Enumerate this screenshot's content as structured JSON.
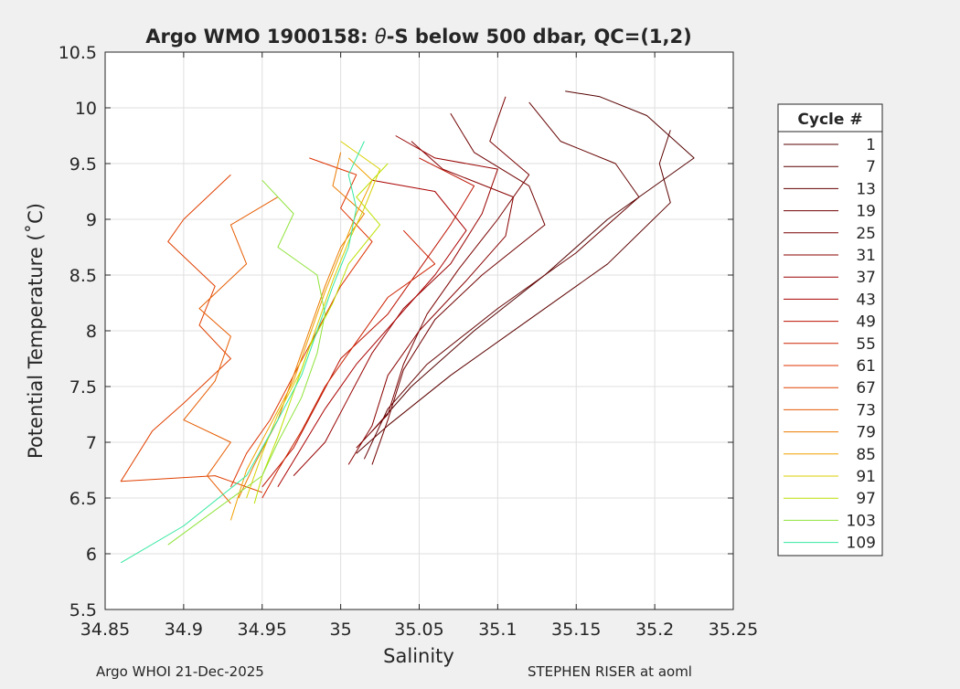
{
  "chart_data": {
    "type": "line",
    "title_prefix": "Argo WMO 1900158: ",
    "title_theta": "θ",
    "title_suffix": "-S below 500 dbar,  QC=(1,2)",
    "xlabel": "Salinity",
    "ylabel": "Potential Temperature (˚C)",
    "xlim": [
      34.85,
      35.25
    ],
    "ylim": [
      5.5,
      10.5
    ],
    "xticks": [
      34.85,
      34.9,
      34.95,
      35,
      35.05,
      35.1,
      35.15,
      35.2,
      35.25
    ],
    "xtick_labels": [
      "34.85",
      "34.9",
      "34.95",
      "35",
      "35.05",
      "35.1",
      "35.15",
      "35.2",
      "35.25"
    ],
    "yticks": [
      5.5,
      6,
      6.5,
      7,
      7.5,
      8,
      8.5,
      9,
      9.5,
      10,
      10.5
    ],
    "ytick_labels": [
      "5.5",
      "6",
      "6.5",
      "7",
      "7.5",
      "8",
      "8.5",
      "9",
      "9.5",
      "10",
      "10.5"
    ],
    "grid": true,
    "legend": {
      "title": "Cycle #",
      "placement": "outside-right",
      "entries": [
        "1",
        "7",
        "13",
        "19",
        "25",
        "31",
        "37",
        "43",
        "49",
        "55",
        "61",
        "67",
        "73",
        "79",
        "85",
        "91",
        "97",
        "103",
        "109"
      ]
    },
    "series": [
      {
        "name": "1",
        "color": "#550000",
        "points": [
          [
            35.143,
            10.15
          ],
          [
            35.165,
            10.1
          ],
          [
            35.195,
            9.93
          ],
          [
            35.225,
            9.55
          ],
          [
            35.17,
            9.0
          ],
          [
            35.13,
            8.5
          ],
          [
            35.085,
            8.0
          ],
          [
            35.045,
            7.5
          ],
          [
            35.02,
            7.1
          ]
        ]
      },
      {
        "name": "7",
        "color": "#5c0000",
        "points": [
          [
            35.21,
            9.8
          ],
          [
            35.203,
            9.5
          ],
          [
            35.21,
            9.15
          ],
          [
            35.17,
            8.6
          ],
          [
            35.12,
            8.1
          ],
          [
            35.07,
            7.6
          ],
          [
            35.03,
            7.15
          ],
          [
            35.01,
            6.9
          ]
        ]
      },
      {
        "name": "13",
        "color": "#650000",
        "points": [
          [
            35.12,
            10.05
          ],
          [
            35.14,
            9.7
          ],
          [
            35.175,
            9.5
          ],
          [
            35.19,
            9.2
          ],
          [
            35.15,
            8.7
          ],
          [
            35.1,
            8.2
          ],
          [
            35.055,
            7.7
          ],
          [
            35.03,
            7.3
          ],
          [
            35.015,
            6.85
          ]
        ]
      },
      {
        "name": "19",
        "color": "#700000",
        "points": [
          [
            35.07,
            9.95
          ],
          [
            35.085,
            9.6
          ],
          [
            35.12,
            9.3
          ],
          [
            35.13,
            8.95
          ],
          [
            35.09,
            8.5
          ],
          [
            35.06,
            8.1
          ],
          [
            35.04,
            7.65
          ],
          [
            35.03,
            7.2
          ],
          [
            35.02,
            6.8
          ]
        ]
      },
      {
        "name": "25",
        "color": "#7a0000",
        "points": [
          [
            35.105,
            10.1
          ],
          [
            35.095,
            9.7
          ],
          [
            35.12,
            9.4
          ],
          [
            35.1,
            9.0
          ],
          [
            35.075,
            8.55
          ],
          [
            35.055,
            8.15
          ],
          [
            35.04,
            7.7
          ],
          [
            35.03,
            7.25
          ],
          [
            35.01,
            6.95
          ]
        ]
      },
      {
        "name": "31",
        "color": "#880000",
        "points": [
          [
            35.045,
            9.7
          ],
          [
            35.065,
            9.45
          ],
          [
            35.11,
            9.2
          ],
          [
            35.105,
            8.85
          ],
          [
            35.08,
            8.45
          ],
          [
            35.05,
            8.0
          ],
          [
            35.03,
            7.6
          ],
          [
            35.02,
            7.15
          ],
          [
            35.005,
            6.8
          ]
        ]
      },
      {
        "name": "37",
        "color": "#980000",
        "points": [
          [
            35.035,
            9.75
          ],
          [
            35.06,
            9.55
          ],
          [
            35.1,
            9.45
          ],
          [
            35.09,
            9.05
          ],
          [
            35.07,
            8.6
          ],
          [
            35.04,
            8.2
          ],
          [
            35.02,
            7.8
          ],
          [
            35.005,
            7.4
          ],
          [
            34.99,
            7.0
          ],
          [
            34.97,
            6.7
          ]
        ]
      },
      {
        "name": "43",
        "color": "#aa0000",
        "points": [
          [
            35.02,
            9.35
          ],
          [
            35.06,
            9.25
          ],
          [
            35.08,
            8.9
          ],
          [
            35.06,
            8.5
          ],
          [
            35.035,
            8.1
          ],
          [
            35.01,
            7.7
          ],
          [
            34.99,
            7.3
          ],
          [
            34.975,
            6.95
          ],
          [
            34.96,
            6.6
          ]
        ]
      },
      {
        "name": "49",
        "color": "#bb1100",
        "points": [
          [
            35.05,
            9.55
          ],
          [
            35.085,
            9.3
          ],
          [
            35.07,
            8.95
          ],
          [
            35.05,
            8.55
          ],
          [
            35.03,
            8.15
          ],
          [
            35.0,
            7.75
          ],
          [
            34.985,
            7.35
          ],
          [
            34.97,
            6.95
          ],
          [
            34.95,
            6.6
          ]
        ]
      },
      {
        "name": "55",
        "color": "#cc2200",
        "points": [
          [
            35.04,
            8.9
          ],
          [
            35.06,
            8.6
          ],
          [
            35.03,
            8.3
          ],
          [
            35.01,
            7.9
          ],
          [
            34.99,
            7.5
          ],
          [
            34.975,
            7.1
          ],
          [
            34.96,
            6.75
          ],
          [
            34.95,
            6.5
          ]
        ]
      },
      {
        "name": "61",
        "color": "#dd3300",
        "points": [
          [
            34.98,
            9.55
          ],
          [
            35.01,
            9.4
          ],
          [
            35.0,
            9.1
          ],
          [
            35.02,
            8.8
          ],
          [
            35.0,
            8.4
          ],
          [
            34.985,
            8.0
          ],
          [
            34.97,
            7.6
          ],
          [
            34.955,
            7.2
          ],
          [
            34.94,
            6.9
          ],
          [
            34.93,
            6.6
          ]
        ]
      },
      {
        "name": "67",
        "color": "#e04000",
        "points": [
          [
            34.93,
            9.4
          ],
          [
            34.9,
            9.0
          ],
          [
            34.89,
            8.8
          ],
          [
            34.92,
            8.4
          ],
          [
            34.91,
            8.05
          ],
          [
            34.93,
            7.75
          ],
          [
            34.9,
            7.35
          ],
          [
            34.88,
            7.1
          ],
          [
            34.86,
            6.65
          ],
          [
            34.92,
            6.7
          ],
          [
            34.95,
            6.55
          ]
        ]
      },
      {
        "name": "73",
        "color": "#e65c00",
        "points": [
          [
            34.96,
            9.2
          ],
          [
            34.93,
            8.95
          ],
          [
            34.94,
            8.6
          ],
          [
            34.91,
            8.2
          ],
          [
            34.93,
            7.95
          ],
          [
            34.92,
            7.55
          ],
          [
            34.9,
            7.2
          ],
          [
            34.93,
            7.0
          ],
          [
            34.915,
            6.7
          ],
          [
            34.93,
            6.45
          ]
        ]
      },
      {
        "name": "79",
        "color": "#eb7a00",
        "points": [
          [
            35.0,
            9.6
          ],
          [
            34.995,
            9.3
          ],
          [
            35.015,
            9.05
          ],
          [
            35.0,
            8.75
          ],
          [
            34.99,
            8.4
          ],
          [
            34.98,
            8.0
          ],
          [
            34.97,
            7.6
          ],
          [
            34.96,
            7.2
          ],
          [
            34.945,
            6.8
          ],
          [
            34.935,
            6.5
          ]
        ]
      },
      {
        "name": "85",
        "color": "#f0a000",
        "points": [
          [
            35.005,
            9.55
          ],
          [
            35.02,
            9.35
          ],
          [
            35.01,
            9.05
          ],
          [
            35.0,
            8.7
          ],
          [
            34.99,
            8.35
          ],
          [
            34.98,
            7.95
          ],
          [
            34.97,
            7.55
          ],
          [
            34.955,
            7.15
          ],
          [
            34.94,
            6.75
          ],
          [
            34.93,
            6.3
          ]
        ]
      },
      {
        "name": "91",
        "color": "#d8cf00",
        "points": [
          [
            35.0,
            9.7
          ],
          [
            35.025,
            9.45
          ],
          [
            35.015,
            9.1
          ],
          [
            35.005,
            8.8
          ],
          [
            34.995,
            8.45
          ],
          [
            34.985,
            8.05
          ],
          [
            34.975,
            7.65
          ],
          [
            34.96,
            7.25
          ],
          [
            34.95,
            6.9
          ],
          [
            34.94,
            6.5
          ]
        ]
      },
      {
        "name": "97",
        "color": "#bde000",
        "points": [
          [
            35.03,
            9.5
          ],
          [
            35.01,
            9.2
          ],
          [
            35.025,
            8.95
          ],
          [
            35.005,
            8.6
          ],
          [
            34.995,
            8.25
          ],
          [
            34.98,
            7.85
          ],
          [
            34.97,
            7.45
          ],
          [
            34.96,
            7.05
          ],
          [
            34.95,
            6.7
          ],
          [
            34.945,
            6.45
          ]
        ]
      },
      {
        "name": "103",
        "color": "#8fe33a",
        "points": [
          [
            34.95,
            9.35
          ],
          [
            34.97,
            9.05
          ],
          [
            34.96,
            8.75
          ],
          [
            34.985,
            8.5
          ],
          [
            34.99,
            8.15
          ],
          [
            34.985,
            7.8
          ],
          [
            34.975,
            7.4
          ],
          [
            34.96,
            7.0
          ],
          [
            34.95,
            6.7
          ],
          [
            34.89,
            6.08
          ]
        ]
      },
      {
        "name": "109",
        "color": "#33e8a0",
        "points": [
          [
            35.015,
            9.7
          ],
          [
            35.005,
            9.4
          ],
          [
            35.01,
            9.1
          ],
          [
            35.005,
            8.75
          ],
          [
            34.995,
            8.4
          ],
          [
            34.985,
            8.0
          ],
          [
            34.975,
            7.6
          ],
          [
            34.96,
            7.2
          ],
          [
            34.94,
            6.7
          ],
          [
            34.9,
            6.25
          ],
          [
            34.86,
            5.92
          ]
        ]
      }
    ]
  },
  "footer": {
    "left": "Argo WHOI 21-Dec-2025",
    "right": "STEPHEN RISER at aoml"
  }
}
